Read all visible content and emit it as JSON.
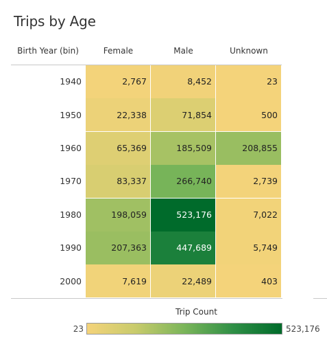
{
  "chart_data": {
    "type": "heatmap",
    "title": "Trips by Age",
    "row_header": "Birth Year (bin)",
    "columns": [
      "Female",
      "Male",
      "Unknown"
    ],
    "rows": [
      "1940",
      "1950",
      "1960",
      "1970",
      "1980",
      "1990",
      "2000"
    ],
    "values": [
      [
        2767,
        8452,
        23
      ],
      [
        22338,
        71854,
        500
      ],
      [
        65369,
        185509,
        208855
      ],
      [
        83337,
        266740,
        2739
      ],
      [
        198059,
        523176,
        7022
      ],
      [
        207363,
        447689,
        5749
      ],
      [
        7619,
        22489,
        403
      ]
    ],
    "labels": [
      [
        "2,767",
        "8,452",
        "23"
      ],
      [
        "22,338",
        "71,854",
        "500"
      ],
      [
        "65,369",
        "185,509",
        "208,855"
      ],
      [
        "83,337",
        "266,740",
        "2,739"
      ],
      [
        "198,059",
        "523,176",
        "7,022"
      ],
      [
        "207,363",
        "447,689",
        "5,749"
      ],
      [
        "7,619",
        "22,489",
        "403"
      ]
    ],
    "legend": {
      "title": "Trip Count",
      "min_label": "23",
      "max_label": "523,176",
      "min": 23,
      "max": 523176,
      "colors": [
        "#f4d37a",
        "#c8cb6c",
        "#7ab55a",
        "#2f8f46",
        "#006b2b"
      ]
    }
  }
}
